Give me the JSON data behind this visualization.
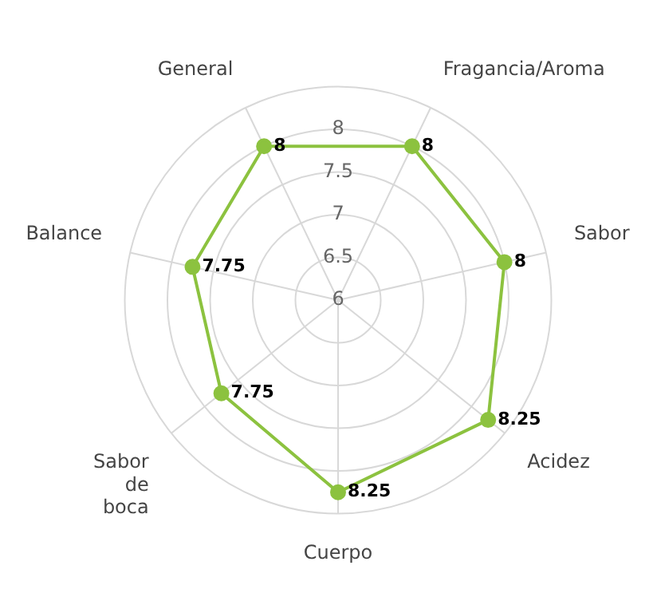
{
  "chart_data": {
    "type": "radar",
    "categories": [
      "Fragancia/Aroma",
      "Sabor",
      "Acidez",
      "Cuerpo",
      "Sabor de boca",
      "Balance",
      "General"
    ],
    "series": [
      {
        "color": "#8cc23f",
        "values": [
          8,
          8,
          8.25,
          8.25,
          7.75,
          7.75,
          8
        ]
      }
    ],
    "ylim": [
      6,
      8.5
    ],
    "yticks": [
      6,
      6.5,
      7,
      7.5,
      8
    ],
    "grid": true,
    "legend": false,
    "marker": "circle",
    "data_labels": true
  }
}
